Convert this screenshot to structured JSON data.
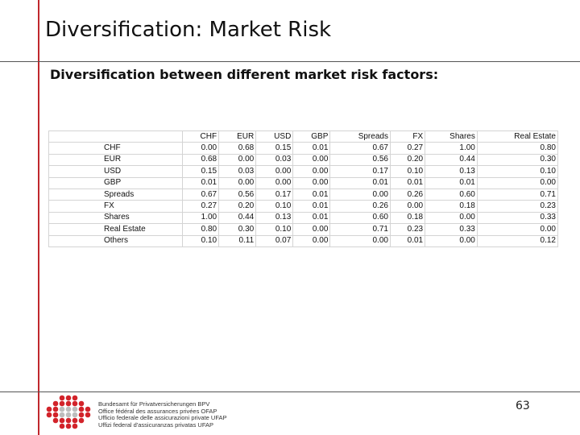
{
  "header": {
    "title": "Diversification: Market Risk"
  },
  "subtitle": "Diversification between different market risk factors:",
  "table": {
    "columns": [
      "CHF",
      "EUR",
      "USD",
      "GBP",
      "Spreads",
      "FX",
      "Shares",
      "Real Estate"
    ],
    "rows": [
      [
        "CHF",
        "0.00",
        "0.68",
        "0.15",
        "0.01",
        "0.67",
        "0.27",
        "1.00",
        "0.80"
      ],
      [
        "EUR",
        "0.68",
        "0.00",
        "0.03",
        "0.00",
        "0.56",
        "0.20",
        "0.44",
        "0.30"
      ],
      [
        "USD",
        "0.15",
        "0.03",
        "0.00",
        "0.00",
        "0.17",
        "0.10",
        "0.13",
        "0.10"
      ],
      [
        "GBP",
        "0.01",
        "0.00",
        "0.00",
        "0.00",
        "0.01",
        "0.01",
        "0.01",
        "0.00"
      ],
      [
        "Spreads",
        "0.67",
        "0.56",
        "0.17",
        "0.01",
        "0.00",
        "0.26",
        "0.60",
        "0.71"
      ],
      [
        "FX",
        "0.27",
        "0.20",
        "0.10",
        "0.01",
        "0.26",
        "0.00",
        "0.18",
        "0.23"
      ],
      [
        "Shares",
        "1.00",
        "0.44",
        "0.13",
        "0.01",
        "0.60",
        "0.18",
        "0.00",
        "0.33"
      ],
      [
        "Real Estate",
        "0.80",
        "0.30",
        "0.10",
        "0.00",
        "0.71",
        "0.23",
        "0.33",
        "0.00"
      ],
      [
        "Others",
        "0.10",
        "0.11",
        "0.07",
        "0.00",
        "0.00",
        "0.01",
        "0.00",
        "0.12"
      ]
    ]
  },
  "footer": {
    "logo_lines": [
      "Bundesamt für Privatversicherungen BPV",
      "Office fédéral des assurances privées OFAP",
      "Ufficio federale delle assicurazioni private UFAP",
      "Uffizi federal d'assicuranzas privatas UFAP"
    ],
    "page_number": "63"
  }
}
